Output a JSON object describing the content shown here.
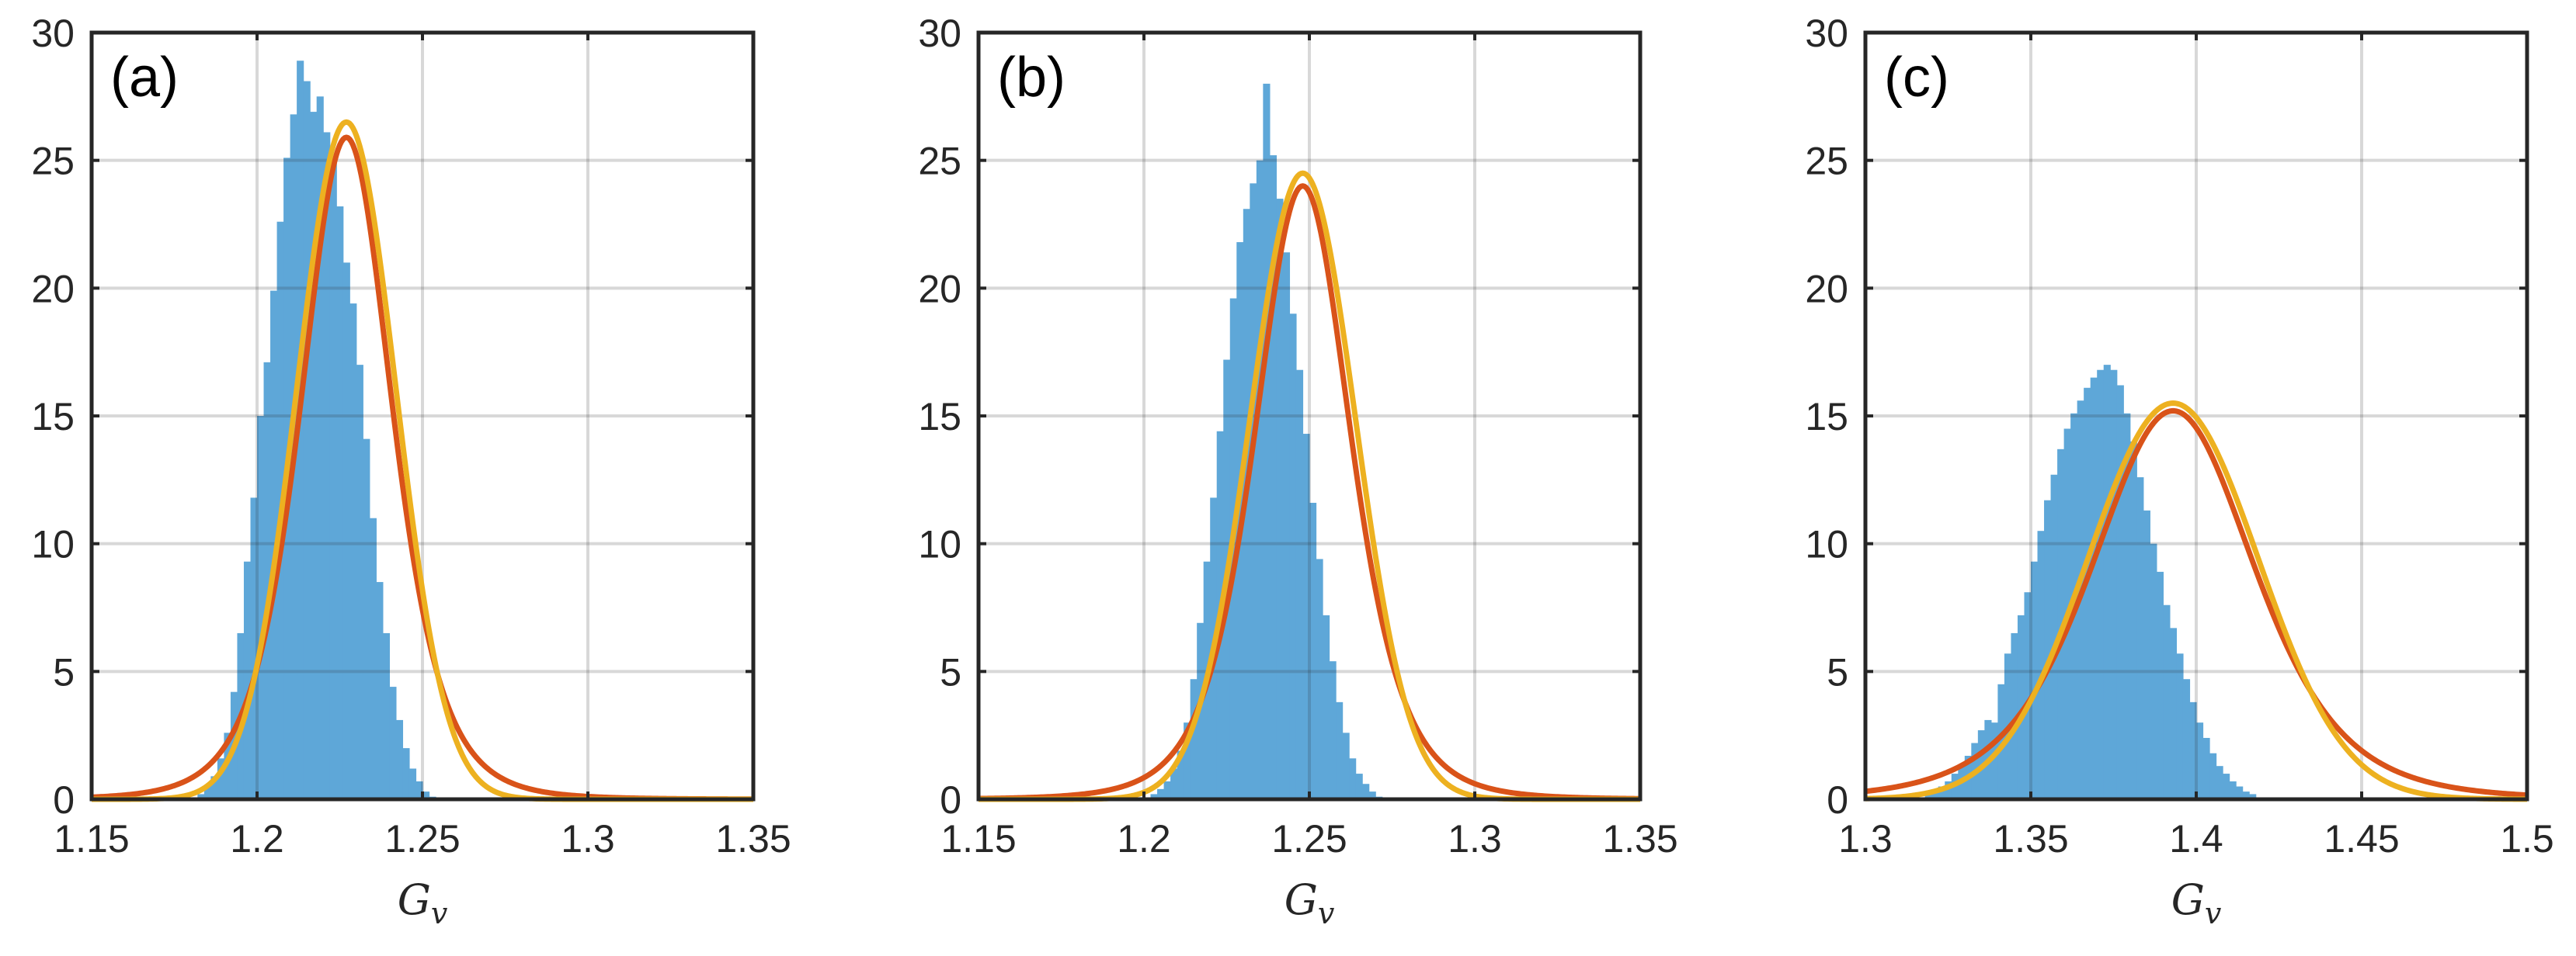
{
  "colors": {
    "histogram": "#5ea7d8",
    "fit_red": "#d95319",
    "fit_yellow": "#edb120",
    "grid": "#d4d4d4",
    "axes": "#262626"
  },
  "chart_data": [
    {
      "type": "bar",
      "panel_label": "(a)",
      "xlabel_base": "G",
      "xlabel_sub": "v",
      "xlim": [
        1.15,
        1.35
      ],
      "ylim": [
        0,
        30
      ],
      "xticks": [
        1.15,
        1.2,
        1.25,
        1.3,
        1.35
      ],
      "xtick_labels": [
        "1.15",
        "1.2",
        "1.25",
        "1.3",
        "1.35"
      ],
      "yticks": [
        0,
        5,
        10,
        15,
        20,
        25,
        30
      ],
      "ytick_labels": [
        "0",
        "5",
        "10",
        "15",
        "20",
        "25",
        "30"
      ],
      "grid": true,
      "histogram": {
        "bin_start": 1.182,
        "bin_width": 0.002,
        "values": [
          0.2,
          0.5,
          0.9,
          1.6,
          2.6,
          4.2,
          6.5,
          9.3,
          11.8,
          15.0,
          17.1,
          19.9,
          22.6,
          25.1,
          26.8,
          28.9,
          28.1,
          26.9,
          27.5,
          26.1,
          25.0,
          23.2,
          21.0,
          19.4,
          17.0,
          14.1,
          11.0,
          8.5,
          6.5,
          4.4,
          3.1,
          2.0,
          1.2,
          0.7,
          0.3,
          0.1
        ]
      },
      "series": [
        {
          "center": 1.227,
          "sigma": 0.0143,
          "peak": 25.9,
          "shape": "heavy-tail"
        },
        {
          "center": 1.227,
          "sigma": 0.015,
          "peak": 26.5,
          "shape": "gaussian"
        }
      ]
    },
    {
      "type": "bar",
      "panel_label": "(b)",
      "xlabel_base": "G",
      "xlabel_sub": "v",
      "xlim": [
        1.15,
        1.35
      ],
      "ylim": [
        0,
        30
      ],
      "xticks": [
        1.15,
        1.2,
        1.25,
        1.3,
        1.35
      ],
      "xtick_labels": [
        "1.15",
        "1.2",
        "1.25",
        "1.3",
        "1.35"
      ],
      "yticks": [
        0,
        5,
        10,
        15,
        20,
        25,
        30
      ],
      "ytick_labels": [
        "0",
        "5",
        "10",
        "15",
        "20",
        "25",
        "30"
      ],
      "grid": true,
      "histogram": {
        "bin_start": 1.202,
        "bin_width": 0.002,
        "values": [
          0.2,
          0.4,
          0.7,
          1.2,
          1.9,
          3.0,
          4.7,
          6.9,
          9.3,
          11.8,
          14.4,
          17.2,
          19.6,
          21.8,
          23.1,
          24.1,
          25.0,
          28.0,
          25.2,
          23.5,
          21.4,
          19.0,
          16.8,
          14.3,
          11.6,
          9.4,
          7.2,
          5.4,
          3.8,
          2.6,
          1.6,
          1.0,
          0.6,
          0.3,
          0.1
        ]
      },
      "series": [
        {
          "center": 1.248,
          "sigma": 0.015,
          "peak": 24.0,
          "shape": "heavy-tail"
        },
        {
          "center": 1.248,
          "sigma": 0.016,
          "peak": 24.5,
          "shape": "gaussian"
        }
      ]
    },
    {
      "type": "bar",
      "panel_label": "(c)",
      "xlabel_base": "G",
      "xlabel_sub": "v",
      "xlim": [
        1.3,
        1.5
      ],
      "ylim": [
        0,
        30
      ],
      "xticks": [
        1.3,
        1.35,
        1.4,
        1.45,
        1.5
      ],
      "xtick_labels": [
        "1.3",
        "1.35",
        "1.4",
        "1.45",
        "1.5"
      ],
      "yticks": [
        0,
        5,
        10,
        15,
        20,
        25,
        30
      ],
      "ytick_labels": [
        "0",
        "5",
        "10",
        "15",
        "20",
        "25",
        "30"
      ],
      "grid": true,
      "histogram": {
        "bin_start": 1.318,
        "bin_width": 0.002,
        "values": [
          0.2,
          0.3,
          0.5,
          0.7,
          1.0,
          1.3,
          1.7,
          2.2,
          2.7,
          3.1,
          3.0,
          4.5,
          5.7,
          6.5,
          7.2,
          8.1,
          9.3,
          10.5,
          11.7,
          12.7,
          13.7,
          14.5,
          15.1,
          15.6,
          16.1,
          16.5,
          16.8,
          17.0,
          16.8,
          16.2,
          15.1,
          14.0,
          12.6,
          11.3,
          10.0,
          8.9,
          7.6,
          6.7,
          5.7,
          4.7,
          3.8,
          3.0,
          2.4,
          1.8,
          1.3,
          1.0,
          0.7,
          0.5,
          0.3,
          0.2
        ]
      },
      "series": [
        {
          "center": 1.393,
          "sigma": 0.0255,
          "peak": 15.2,
          "shape": "heavy-tail"
        },
        {
          "center": 1.393,
          "sigma": 0.0258,
          "peak": 15.5,
          "shape": "gaussian"
        }
      ]
    }
  ]
}
